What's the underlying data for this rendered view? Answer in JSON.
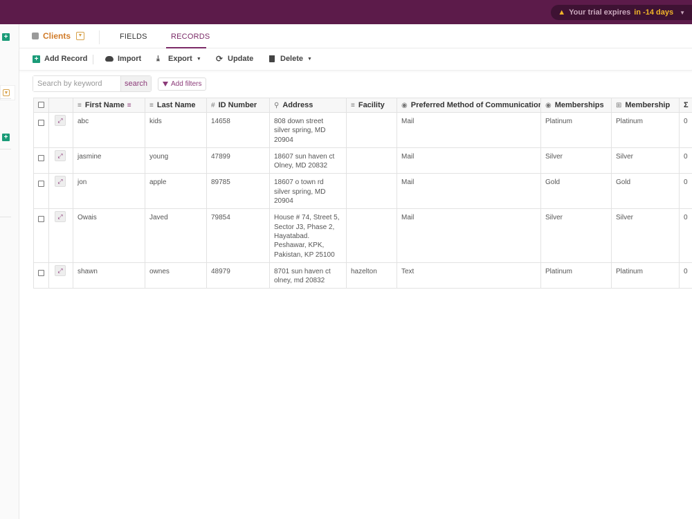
{
  "trial": {
    "prefix": "Your trial expires",
    "days": "in -14 days"
  },
  "tabs": {
    "clients": "Clients",
    "fields": "FIELDS",
    "records": "RECORDS"
  },
  "toolbar": {
    "add_record": "Add Record",
    "import": "Import",
    "export": "Export",
    "update": "Update",
    "delete": "Delete"
  },
  "search": {
    "placeholder": "Search by keyword",
    "button": "search",
    "filters": "Add filters"
  },
  "columns": [
    "First Name",
    "Last Name",
    "ID Number",
    "Address",
    "Facility",
    "Preferred Method of Communication",
    "Memberships",
    "Membership",
    "Σ"
  ],
  "rows": [
    {
      "first": "abc",
      "last": "kids",
      "id": "14658",
      "address": [
        "808 down street",
        "silver spring, MD",
        "20904"
      ],
      "facility": "",
      "pref": "Mail",
      "memberships": "Platinum",
      "membership": "Platinum",
      "sum": "0"
    },
    {
      "first": "jasmine",
      "last": "young",
      "id": "47899",
      "address": [
        "18607 sun haven ct",
        "Olney, MD 20832"
      ],
      "facility": "",
      "pref": "Mail",
      "memberships": "Silver",
      "membership": "Silver",
      "sum": "0"
    },
    {
      "first": "jon",
      "last": "apple",
      "id": "89785",
      "address": [
        "18607 o town rd",
        "silver spring, MD",
        "20904"
      ],
      "facility": "",
      "pref": "Mail",
      "memberships": "Gold",
      "membership": "Gold",
      "sum": "0"
    },
    {
      "first": "Owais",
      "last": "Javed",
      "id": "79854",
      "address": [
        "House # 74, Street 5,",
        "Sector J3, Phase 2,",
        "Hayatabad.",
        "Peshawar, KPK,",
        "Pakistan, KP 25100"
      ],
      "facility": "",
      "pref": "Mail",
      "memberships": "Silver",
      "membership": "Silver",
      "sum": "0"
    },
    {
      "first": "shawn",
      "last": "ownes",
      "id": "48979",
      "address": [
        "8701 sun haven ct",
        "olney, md 20832"
      ],
      "facility": "hazelton",
      "pref": "Text",
      "memberships": "Platinum",
      "membership": "Platinum",
      "sum": "0"
    }
  ],
  "colors": {
    "topbar": "#5c1b4a",
    "accent": "#7b2a67",
    "brand_orange": "#d17b29",
    "green": "#1a9b78"
  }
}
